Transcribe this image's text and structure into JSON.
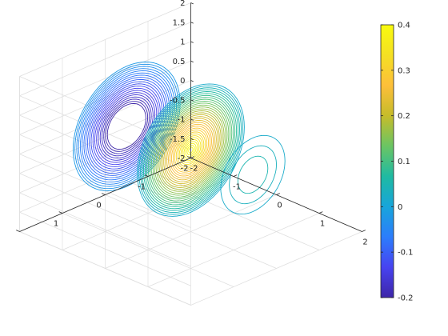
{
  "chart_data": {
    "type": "contour3",
    "title": "",
    "xlabel": "",
    "ylabel": "",
    "zlabel": "",
    "grid": true,
    "colormap": "parula",
    "view": {
      "azimuth_deg": -37.5,
      "elevation_deg": 30
    },
    "xlim": [
      -2,
      2
    ],
    "ylim": [
      -2,
      2
    ],
    "zlim": [
      -2,
      2
    ],
    "x_ticks": [
      "-2",
      "-1",
      "0",
      "1",
      "2"
    ],
    "y_ticks": [
      "-2",
      "-1",
      "0",
      "1"
    ],
    "z_ticks": [
      "-2",
      "-1.5",
      "-1",
      "-0.5",
      "0",
      "0.5",
      "1",
      "1.5",
      "2"
    ],
    "colorbar": {
      "location": "right",
      "limits": [
        -0.2,
        0.4
      ],
      "ticks": [
        "-0.2",
        "-0.1",
        "0",
        "0.1",
        "0.2",
        "0.3",
        "0.4"
      ]
    },
    "lobes": [
      {
        "center_x": -1.5,
        "level_min": -0.2,
        "level_max": -0.02,
        "rings": 20,
        "note": "negative lobe"
      },
      {
        "center_x": 0.0,
        "level_min": 0.02,
        "level_max": 0.4,
        "rings": 34,
        "note": "positive lobe"
      },
      {
        "center_x": 1.5,
        "level_min": 0.02,
        "level_max": 0.05,
        "rings": 3,
        "note": "small positive lobe"
      }
    ],
    "colors": {
      "parula": [
        "#3e26a8",
        "#4743f0",
        "#2c7dfc",
        "#18a5db",
        "#1fbaa2",
        "#6bc563",
        "#c6bc2a",
        "#fdbf3a",
        "#f5e023",
        "#f9fb0e"
      ],
      "grid": "#dedede",
      "axes": "#262626"
    }
  }
}
